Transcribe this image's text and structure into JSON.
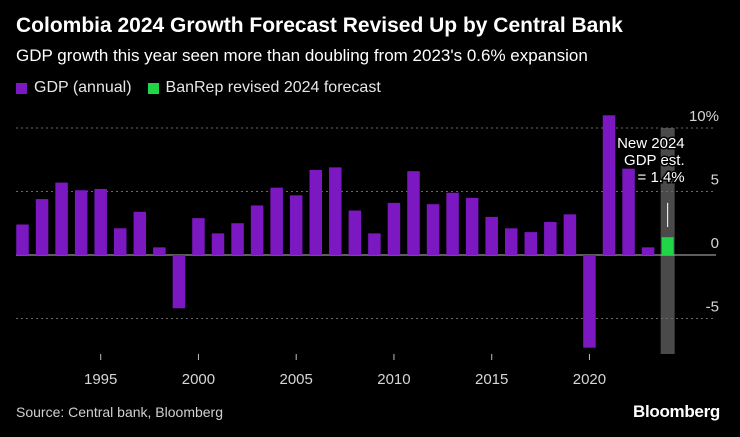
{
  "header": {
    "title": "Colombia 2024 Growth Forecast Revised Up by Central Bank",
    "subtitle": "GDP growth this year seen more than doubling from 2023's 0.6% expansion"
  },
  "legend": [
    {
      "label": "GDP (annual)",
      "color": "#7b18c1"
    },
    {
      "label": "BanRep revised 2024 forecast",
      "color": "#1fd646"
    }
  ],
  "footer": {
    "source": "Source: Central bank, Bloomberg",
    "brand": "Bloomberg"
  },
  "chart_data": {
    "type": "bar",
    "title": "Colombia 2024 Growth Forecast Revised Up by Central Bank",
    "xlabel": "",
    "ylabel": "",
    "ylim": [
      -7.8,
      10
    ],
    "yticks": [
      {
        "value": 10,
        "label": "10%"
      },
      {
        "value": 5,
        "label": "5"
      },
      {
        "value": 0,
        "label": "0"
      },
      {
        "value": -5,
        "label": "-5"
      }
    ],
    "xticks": [
      1995,
      2000,
      2005,
      2010,
      2015,
      2020
    ],
    "grid": true,
    "series": [
      {
        "name": "GDP (annual)",
        "color": "#7b18c1",
        "x": [
          1991,
          1992,
          1993,
          1994,
          1995,
          1996,
          1997,
          1998,
          1999,
          2000,
          2001,
          2002,
          2003,
          2004,
          2005,
          2006,
          2007,
          2008,
          2009,
          2010,
          2011,
          2012,
          2013,
          2014,
          2015,
          2016,
          2017,
          2018,
          2019,
          2020,
          2021,
          2022,
          2023
        ],
        "values": [
          2.4,
          4.4,
          5.7,
          5.1,
          5.2,
          2.1,
          3.4,
          0.6,
          -4.2,
          2.9,
          1.7,
          2.5,
          3.9,
          5.3,
          4.7,
          6.7,
          6.9,
          3.5,
          1.7,
          4.1,
          6.6,
          4.0,
          4.9,
          4.5,
          3.0,
          2.1,
          1.8,
          2.6,
          3.2,
          -7.3,
          11.0,
          6.8,
          0.6
        ]
      },
      {
        "name": "BanRep revised 2024 forecast",
        "color": "#1fd646",
        "x": [
          2024
        ],
        "values": [
          1.4
        ]
      }
    ],
    "annotation": {
      "year": 2024,
      "lines": [
        "New 2024",
        "GDP est.",
        "= 1.4%"
      ],
      "highlight_color": "#4a4a4a"
    }
  }
}
